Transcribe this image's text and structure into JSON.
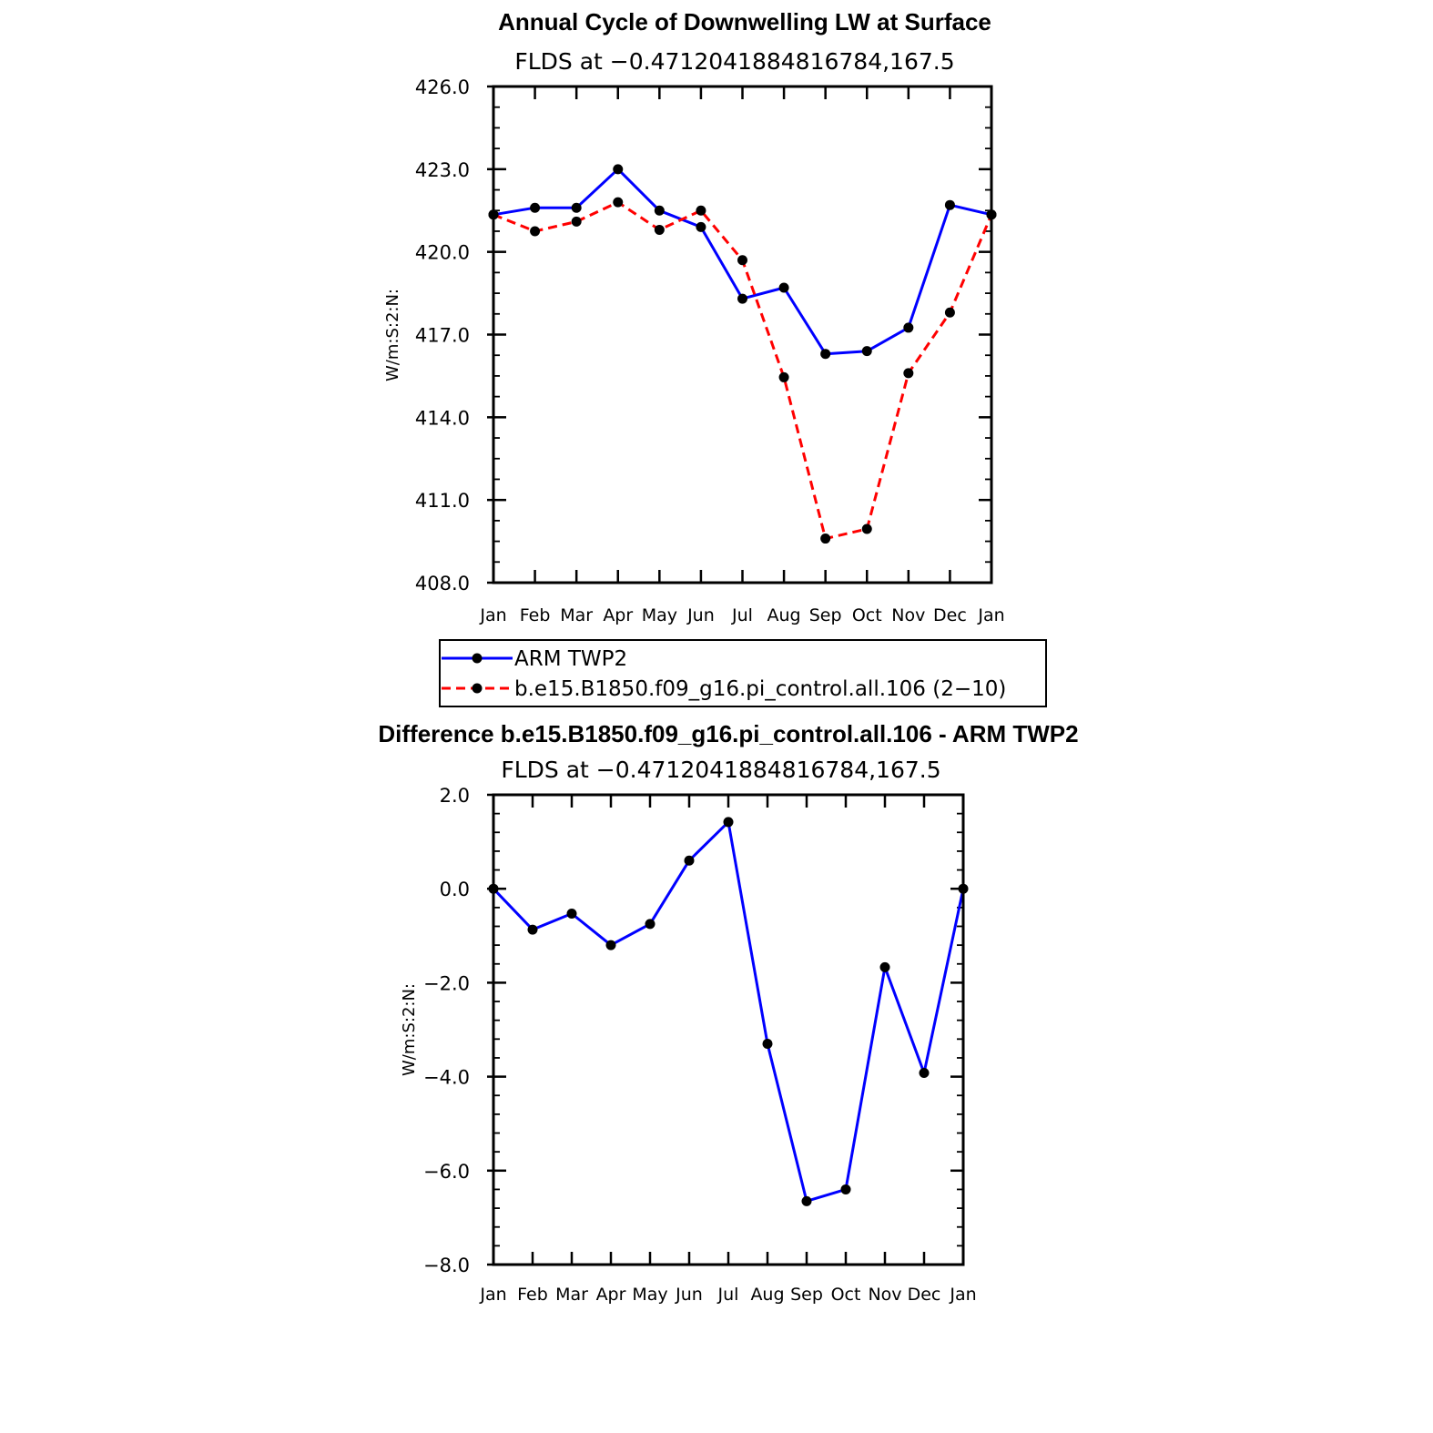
{
  "chart_data": [
    {
      "type": "line",
      "title": "Annual Cycle of Downwelling LW at Surface",
      "subtitle": "FLDS at −0.4712041884816784,167.5",
      "ylabel": "W/m:S:2:N:",
      "xlabel": "",
      "categories": [
        "Jan",
        "Feb",
        "Mar",
        "Apr",
        "May",
        "Jun",
        "Jul",
        "Aug",
        "Sep",
        "Oct",
        "Nov",
        "Dec",
        "Jan"
      ],
      "ylim": [
        408.0,
        426.0
      ],
      "yticks": [
        "408.0",
        "411.0",
        "414.0",
        "417.0",
        "420.0",
        "423.0",
        "426.0"
      ],
      "series": [
        {
          "name": "ARM TWP2",
          "color": "#0000ff",
          "style": "solid",
          "values": [
            421.35,
            421.6,
            421.6,
            423.0,
            421.5,
            420.9,
            418.3,
            418.7,
            416.3,
            416.4,
            417.25,
            421.7,
            421.35
          ]
        },
        {
          "name": "b.e15.B1850.f09_g16.pi_control.all.106 (2−10)",
          "color": "#ff0000",
          "style": "dashed",
          "values": [
            421.35,
            420.75,
            421.1,
            421.8,
            420.8,
            421.5,
            419.7,
            415.45,
            409.6,
            409.95,
            415.6,
            417.8,
            421.35
          ]
        }
      ],
      "legend": "bottom"
    },
    {
      "type": "line",
      "title": "Difference b.e15.B1850.f09_g16.pi_control.all.106 - ARM TWP2",
      "subtitle": "FLDS at −0.4712041884816784,167.5",
      "ylabel": "W/m:S:2:N:",
      "xlabel": "",
      "categories": [
        "Jan",
        "Feb",
        "Mar",
        "Apr",
        "May",
        "Jun",
        "Jul",
        "Aug",
        "Sep",
        "Oct",
        "Nov",
        "Dec",
        "Jan"
      ],
      "ylim": [
        -8.0,
        2.0
      ],
      "yticks": [
        "−8.0",
        "−6.0",
        "−4.0",
        "−2.0",
        "0.0",
        "2.0"
      ],
      "series": [
        {
          "name": "Difference",
          "color": "#0000ff",
          "style": "solid",
          "values": [
            0.0,
            -0.87,
            -0.53,
            -1.2,
            -0.75,
            0.6,
            1.42,
            -3.3,
            -6.65,
            -6.4,
            -1.67,
            -3.92,
            0.0
          ]
        }
      ]
    }
  ]
}
